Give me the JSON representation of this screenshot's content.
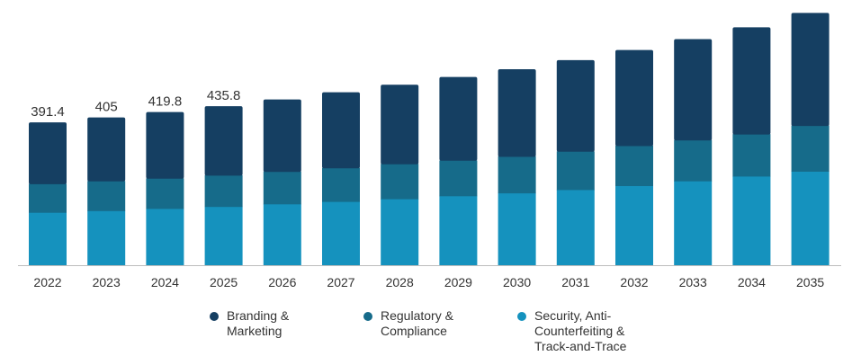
{
  "chart_data": {
    "type": "bar",
    "stacked": true,
    "categories": [
      "2022",
      "2023",
      "2024",
      "2025",
      "2026",
      "2027",
      "2028",
      "2029",
      "2030",
      "2031",
      "2032",
      "2033",
      "2034",
      "2035"
    ],
    "series": [
      {
        "name": "Security, Anti-Counterfeiting & Track-and-Trace",
        "color": "#1592be",
        "values": [
          144.8,
          149.5,
          155.3,
          161.0,
          168.0,
          174.6,
          182.1,
          190.3,
          198.0,
          207.2,
          218.0,
          230.9,
          244.0,
          257.6
        ]
      },
      {
        "name": "Regulatory & Compliance",
        "color": "#166b8a",
        "values": [
          78.3,
          81.3,
          82.9,
          85.7,
          89.0,
          92.0,
          95.8,
          97.0,
          100.3,
          104.9,
          109.6,
          112.2,
          115.4,
          125.3
        ]
      },
      {
        "name": "Branding & Marketing",
        "color": "#153f62",
        "values": [
          168.3,
          174.2,
          181.6,
          189.1,
          197.4,
          207.4,
          216.7,
          228.5,
          238.9,
          249.9,
          262.2,
          276.4,
          292.4,
          308.4
        ]
      }
    ],
    "totals": [
      391.4,
      405,
      419.8,
      435.8,
      454.4,
      474.0,
      494.6,
      515.8,
      537.2,
      562.0,
      589.8,
      619.5,
      651.8,
      691.3
    ],
    "data_labels": [
      "391.4",
      "405",
      "419.8",
      "435.8",
      "",
      "",
      "",
      "",
      "",
      "",
      "",
      "",
      "",
      ""
    ],
    "ylim": [
      0,
      700
    ],
    "grid": false,
    "legend_position": "bottom"
  },
  "legend": {
    "items": [
      {
        "label": "Branding &\nMarketing",
        "color": "#153f62"
      },
      {
        "label": "Regulatory &\nCompliance",
        "color": "#166b8a"
      },
      {
        "label": "Security, Anti-\nCounterfeiting &\nTrack-and-Trace",
        "color": "#1592be"
      }
    ]
  }
}
